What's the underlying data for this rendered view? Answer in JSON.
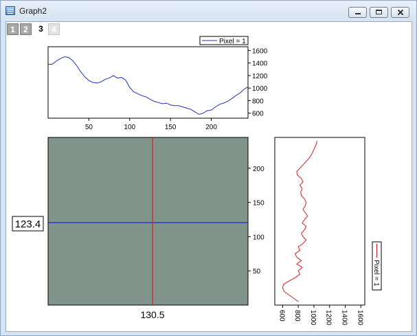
{
  "window": {
    "title": "Graph2"
  },
  "layer_tabs": [
    "1",
    "2",
    "3",
    "4"
  ],
  "top_profile": {
    "legend": "Pixel = 1",
    "x_ticks": [
      "50",
      "100",
      "150",
      "200"
    ],
    "y_ticks": [
      "600",
      "800",
      "1000",
      "1200",
      "1400",
      "1600"
    ]
  },
  "image_plot": {
    "y_ticks": [
      "50",
      "100",
      "150",
      "200"
    ],
    "h_cursor_label": "123.4",
    "v_cursor_label": "130.5"
  },
  "right_profile": {
    "legend": "Pixel = 1",
    "x_ticks": [
      "600",
      "800",
      "1000",
      "1200",
      "1400",
      "1600"
    ]
  },
  "colors": {
    "top_profile_line": "#1f2fbf",
    "right_profile_line": "#cc2020",
    "h_cursor": "#1a2fd0",
    "v_cursor": "#e01b1b"
  },
  "chart_data": [
    {
      "type": "line",
      "x": [
        0,
        5,
        10,
        15,
        20,
        25,
        30,
        35,
        40,
        45,
        50,
        55,
        60,
        65,
        70,
        75,
        80,
        85,
        90,
        95,
        100,
        105,
        110,
        115,
        120,
        125,
        130,
        135,
        140,
        145,
        150,
        155,
        160,
        165,
        170,
        175,
        180,
        185,
        190,
        195,
        200,
        205,
        210,
        215,
        220,
        225,
        230,
        235,
        240,
        245
      ],
      "series": [
        {
          "name": "Pixel = 1",
          "values": [
            1380,
            1380,
            1430,
            1470,
            1500,
            1490,
            1440,
            1360,
            1260,
            1180,
            1120,
            1090,
            1080,
            1100,
            1140,
            1160,
            1200,
            1160,
            1170,
            1130,
            1010,
            940,
            910,
            880,
            860,
            820,
            790,
            770,
            750,
            760,
            730,
            720,
            720,
            700,
            680,
            660,
            620,
            580,
            600,
            640,
            650,
            700,
            740,
            760,
            790,
            830,
            880,
            920,
            980,
            1020
          ]
        }
      ],
      "xlim": [
        0,
        245
      ],
      "ylim": [
        520,
        1660
      ]
    },
    {
      "type": "line",
      "y": [
        5,
        10,
        15,
        20,
        25,
        30,
        35,
        40,
        45,
        50,
        55,
        60,
        65,
        70,
        75,
        80,
        85,
        90,
        95,
        100,
        105,
        110,
        115,
        120,
        125,
        130,
        135,
        140,
        145,
        150,
        155,
        160,
        165,
        170,
        175,
        180,
        185,
        190,
        195,
        200,
        205,
        210,
        215,
        220,
        225,
        230,
        235,
        240
      ],
      "series": [
        {
          "name": "Pixel = 1",
          "values": [
            800,
            740,
            680,
            620,
            600,
            610,
            680,
            760,
            820,
            800,
            850,
            780,
            840,
            780,
            760,
            820,
            800,
            860,
            900,
            860,
            840,
            880,
            900,
            850,
            880,
            920,
            890,
            860,
            890,
            900,
            880,
            840,
            830,
            850,
            820,
            860,
            840,
            790,
            780,
            820,
            860,
            900,
            940,
            970,
            990,
            1010,
            1030,
            1040
          ]
        }
      ],
      "xlim": [
        500,
        1650
      ],
      "ylim": [
        0,
        245
      ]
    }
  ]
}
